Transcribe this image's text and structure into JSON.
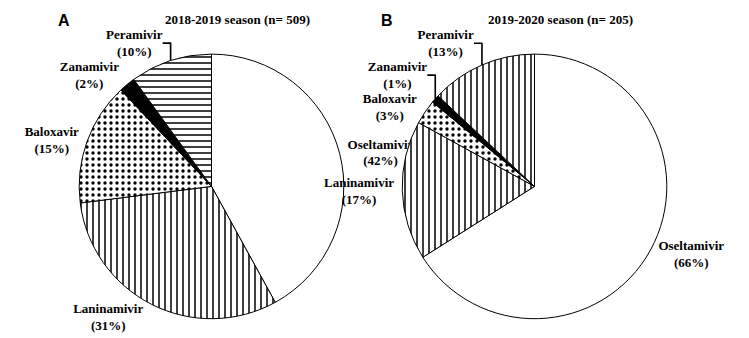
{
  "chart_data": [
    {
      "type": "pie",
      "title": "2018-2019 season (n= 509)",
      "annotations": [
        "A"
      ],
      "categories": [
        "Oseltamivir",
        "Laninamivir",
        "Baloxavir",
        "Zanamivir",
        "Peramivir"
      ],
      "values": [
        42,
        31,
        15,
        2,
        10
      ],
      "value_labels": [
        "(42%)",
        "(31%)",
        "(15%)",
        "(2%)",
        "(10%)"
      ],
      "colors": [
        "#ffffff",
        "#ffffff",
        "#ffffff",
        "#000000",
        "#ffffff"
      ],
      "data_labels": true
    },
    {
      "type": "pie",
      "title": "2019-2020 season (n= 205)",
      "annotations": [
        "B"
      ],
      "categories": [
        "Oseltamivir",
        "Laninamivir",
        "Baloxavir",
        "Zanamivir",
        "Peramivir"
      ],
      "values": [
        66,
        17,
        3,
        1,
        13
      ],
      "value_labels": [
        "(66%)",
        "(17%)",
        "(3%)",
        "(1%)",
        "(13%)"
      ],
      "colors": [
        "#ffffff",
        "#ffffff",
        "#ffffff",
        "#000000",
        "#ffffff"
      ],
      "data_labels": true
    }
  ]
}
